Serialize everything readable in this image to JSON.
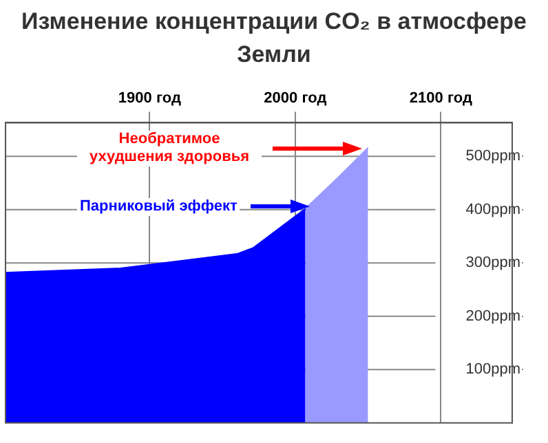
{
  "chart_data": {
    "type": "area",
    "title": "Изменение концентрации CO₂ в атмосфере Земли",
    "series": [
      {
        "type": "area",
        "color": "#0000ff",
        "x": [
          1801,
          1880,
          1960,
          1971,
          2007
        ],
        "values": [
          282,
          290,
          317,
          328,
          402
        ]
      },
      {
        "type": "area",
        "color": "#9999ff",
        "x": [
          2007,
          2029,
          2050
        ],
        "values": [
          402,
          459,
          516
        ]
      }
    ],
    "xlim": [
      1801,
      2149
    ],
    "xticks": [
      {
        "value": 1900,
        "label": "1900 год"
      },
      {
        "value": 2000,
        "label": "2000 год"
      },
      {
        "value": 2100,
        "label": "2100 год"
      }
    ],
    "ylim": [
      0,
      563
    ],
    "yticks": [
      {
        "value": 100,
        "label": "100ppm"
      },
      {
        "value": 200,
        "label": "200ppm"
      },
      {
        "value": 300,
        "label": "300ppm"
      },
      {
        "value": 400,
        "label": "400ppm"
      },
      {
        "value": 500,
        "label": "500ppm"
      }
    ],
    "annotations": [
      "Необратимое ухудшения здоровья",
      "Парниковый эффект"
    ],
    "grid": true,
    "legend": false
  }
}
